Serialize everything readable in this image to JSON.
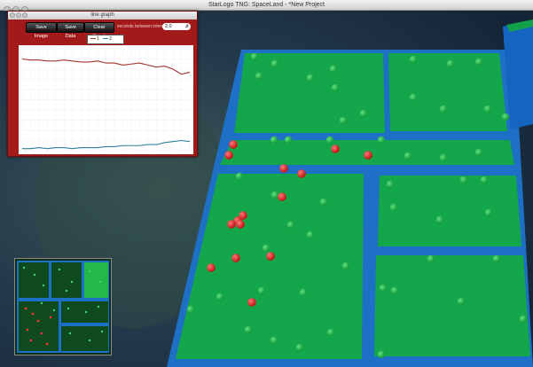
{
  "window": {
    "title": "StarLogo TNG: SpaceLand - *New Project"
  },
  "graph_window": {
    "title": "line graph",
    "toolbar": {
      "save_image": "Save Image",
      "save_data": "Save Data",
      "clear_graph": "Clear Graph",
      "interval_label": "seconds between intervals",
      "interval_value": "2.0"
    },
    "legend": [
      {
        "label": "1",
        "color": "#a0342a"
      },
      {
        "label": "2",
        "color": "#2f7f9b"
      }
    ]
  },
  "chart_data": {
    "type": "line",
    "xlim": [
      0,
      100
    ],
    "ylim": [
      0,
      100
    ],
    "grid": true,
    "legend_position": "top",
    "series": [
      {
        "name": "1",
        "color": "#a0342a",
        "x": [
          0,
          5,
          10,
          15,
          20,
          25,
          30,
          35,
          40,
          45,
          50,
          55,
          60,
          65,
          70,
          75,
          80,
          85,
          90,
          95,
          100
        ],
        "y": [
          90,
          89,
          89,
          88,
          88,
          89,
          88,
          87,
          87,
          88,
          86,
          86,
          84,
          85,
          86,
          84,
          82,
          83,
          80,
          75,
          77
        ]
      },
      {
        "name": "2",
        "color": "#2f7f9b",
        "x": [
          0,
          5,
          10,
          15,
          20,
          25,
          30,
          35,
          40,
          45,
          50,
          55,
          60,
          65,
          70,
          75,
          80,
          85,
          90,
          95,
          100
        ],
        "y": [
          2,
          2,
          3,
          2,
          3,
          3,
          2,
          3,
          3,
          3,
          4,
          4,
          5,
          5,
          5,
          6,
          6,
          8,
          9,
          10,
          9
        ]
      }
    ]
  },
  "scene": {
    "ground_color": "#14a64a",
    "wall_color": "#1e6fc6",
    "red_agent_color": "#e01b1b",
    "green_agent_color": "#22b84c"
  }
}
